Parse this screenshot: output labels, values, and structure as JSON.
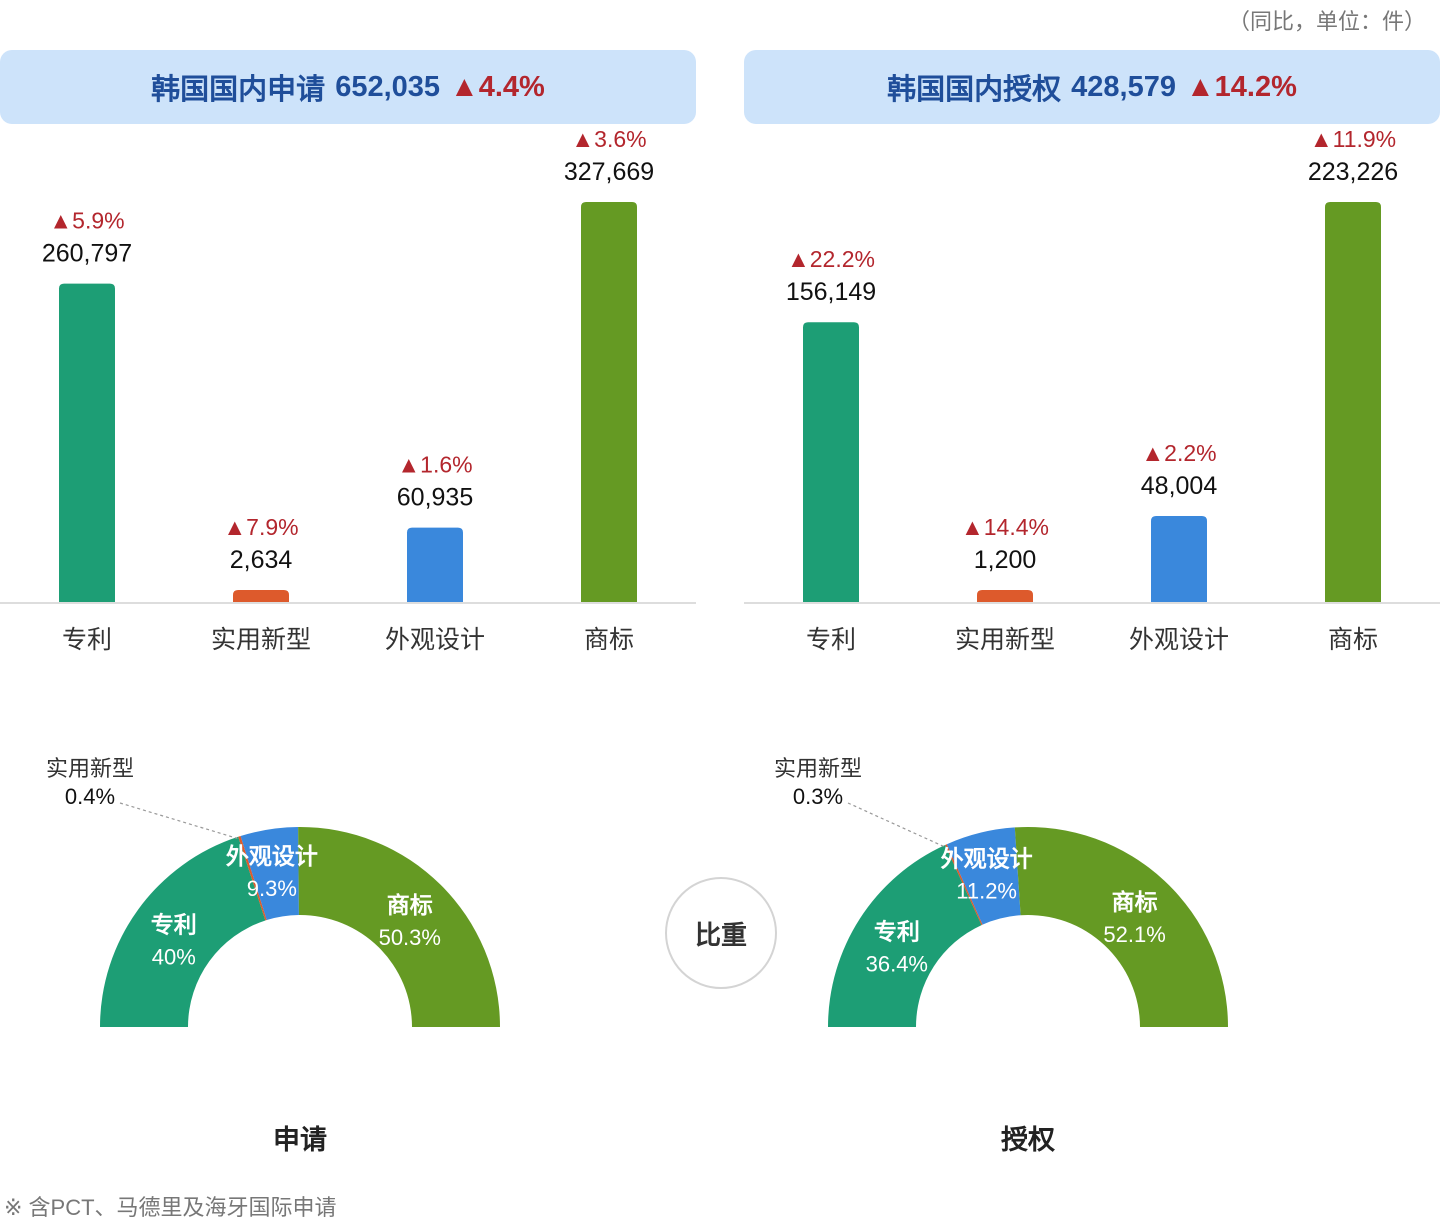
{
  "unit_note": "（同比，单位：件）",
  "share_label": "比重",
  "footnote": "※ 含PCT、马德里及海牙国际申请",
  "colors": {
    "patent": "#1d9e75",
    "utility": "#dd5a2c",
    "design": "#3a88dc",
    "trademark": "#659a23",
    "increase": "#b3262d",
    "header_bg": "#cde3fa",
    "header_text": "#1f4e9a"
  },
  "up_icon": "triangle-up-icon",
  "panels": [
    {
      "title": "韩国国内申请",
      "total": "652,035",
      "change": "▲4.4%"
    },
    {
      "title": "韩国国内授权",
      "total": "428,579",
      "change": "▲14.2%"
    }
  ],
  "chart_data": [
    {
      "type": "bar",
      "categories": [
        "专利",
        "实用新型",
        "外观设计",
        "商标"
      ],
      "values": [
        260797,
        2634,
        60935,
        327669
      ],
      "value_labels": [
        "260,797",
        "2,634",
        "60,935",
        "327,669"
      ],
      "change_labels": [
        "▲5.9%",
        "▲7.9%",
        "▲1.6%",
        "▲3.6%"
      ],
      "colors": [
        "#1d9e75",
        "#dd5a2c",
        "#3a88dc",
        "#659a23"
      ],
      "ylim": [
        0,
        327669
      ],
      "grid": false
    },
    {
      "type": "bar",
      "categories": [
        "专利",
        "实用新型",
        "外观设计",
        "商标"
      ],
      "values": [
        156149,
        1200,
        48004,
        223226
      ],
      "value_labels": [
        "156,149",
        "1,200",
        "48,004",
        "223,226"
      ],
      "change_labels": [
        "▲22.2%",
        "▲14.4%",
        "▲2.2%",
        "▲11.9%"
      ],
      "colors": [
        "#1d9e75",
        "#dd5a2c",
        "#3a88dc",
        "#659a23"
      ],
      "ylim": [
        0,
        223226
      ],
      "grid": false
    },
    {
      "type": "pie",
      "title": "申请",
      "slices": [
        {
          "label": "专利",
          "value": 40,
          "value_label": "40%"
        },
        {
          "label": "实用新型",
          "value": 0.4,
          "value_label": "0.4%"
        },
        {
          "label": "外观设计",
          "value": 9.3,
          "value_label": "9.3%"
        },
        {
          "label": "商标",
          "value": 50.3,
          "value_label": "50.3%"
        }
      ]
    },
    {
      "type": "pie",
      "title": "授权",
      "slices": [
        {
          "label": "专利",
          "value": 36.4,
          "value_label": "36.4%"
        },
        {
          "label": "实用新型",
          "value": 0.3,
          "value_label": "0.3%"
        },
        {
          "label": "外观设计",
          "value": 11.2,
          "value_label": "11.2%"
        },
        {
          "label": "商标",
          "value": 52.1,
          "value_label": "52.1%"
        }
      ]
    }
  ]
}
